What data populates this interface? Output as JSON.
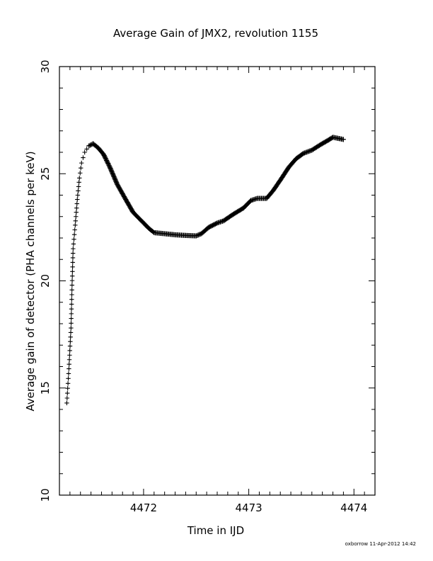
{
  "chart_data": {
    "type": "scatter",
    "title": "Average Gain of JMX2, revolution 1155",
    "xlabel": "Time in IJD",
    "ylabel": "Average gain of detector (PHA channels per keV)",
    "xlim": [
      4471.2,
      4474.2
    ],
    "ylim": [
      10,
      30
    ],
    "xticks": [
      4472,
      4473,
      4474
    ],
    "yticks": [
      10,
      15,
      20,
      25,
      30
    ],
    "grid": false,
    "marker": "+",
    "series": [
      {
        "curve": [
          [
            4471.27,
            14.3
          ],
          [
            4471.29,
            15.9
          ],
          [
            4471.31,
            17.8
          ],
          [
            4471.32,
            19.8
          ],
          [
            4471.33,
            21.5
          ],
          [
            4471.35,
            22.6
          ],
          [
            4471.37,
            23.8
          ],
          [
            4471.39,
            24.8
          ],
          [
            4471.41,
            25.5
          ],
          [
            4471.44,
            26.0
          ],
          [
            4471.48,
            26.3
          ],
          [
            4471.52,
            26.4
          ],
          [
            4471.57,
            26.2
          ],
          [
            4471.62,
            25.9
          ],
          [
            4471.68,
            25.3
          ],
          [
            4471.75,
            24.5
          ],
          [
            4471.83,
            23.8
          ],
          [
            4471.9,
            23.2
          ],
          [
            4471.98,
            22.8
          ],
          [
            4472.05,
            22.45
          ],
          [
            4472.1,
            22.25
          ],
          [
            4472.2,
            22.2
          ],
          [
            4472.3,
            22.15
          ],
          [
            4472.4,
            22.12
          ],
          [
            4472.5,
            22.1
          ],
          [
            4472.55,
            22.2
          ],
          [
            4472.62,
            22.5
          ],
          [
            4472.7,
            22.7
          ],
          [
            4472.76,
            22.8
          ],
          [
            4472.85,
            23.1
          ],
          [
            4472.95,
            23.4
          ],
          [
            4473.02,
            23.75
          ],
          [
            4473.08,
            23.85
          ],
          [
            4473.12,
            23.85
          ],
          [
            4473.17,
            23.85
          ],
          [
            4473.23,
            24.2
          ],
          [
            4473.3,
            24.7
          ],
          [
            4473.38,
            25.3
          ],
          [
            4473.45,
            25.7
          ],
          [
            4473.52,
            25.95
          ],
          [
            4473.6,
            26.1
          ],
          [
            4473.68,
            26.35
          ],
          [
            4473.75,
            26.55
          ],
          [
            4473.8,
            26.7
          ],
          [
            4473.9,
            26.6
          ]
        ]
      }
    ]
  },
  "footer": {
    "stamp": "oxborrow 11-Apr-2012 14:42"
  }
}
